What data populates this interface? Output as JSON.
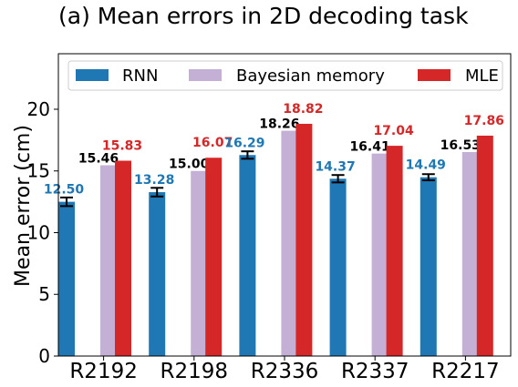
{
  "chart_data": {
    "type": "bar",
    "title": "(a)   Mean errors in 2D decoding task",
    "xlabel": "",
    "ylabel": "Mean error (cm)",
    "ylim": [
      0,
      24.5
    ],
    "yticks": [
      "0",
      "5",
      "10",
      "15",
      "20"
    ],
    "categories": [
      "R2192",
      "R2198",
      "R2336",
      "R2337",
      "R2217"
    ],
    "series": [
      {
        "name": "RNN",
        "color": "#1f77b4",
        "label_color": "#1f77b4",
        "values": [
          12.5,
          13.28,
          16.29,
          14.37,
          14.49
        ],
        "labels": [
          "12.50",
          "13.28",
          "16.29",
          "14.37",
          "14.49"
        ],
        "errors": [
          0.35,
          0.35,
          0.3,
          0.3,
          0.25
        ]
      },
      {
        "name": "Bayesian memory",
        "color": "#c5b0d5",
        "label_color": "#000000",
        "values": [
          15.46,
          15.0,
          18.26,
          16.41,
          16.53
        ],
        "labels": [
          "15.46",
          "15.00",
          "18.26",
          "16.41",
          "16.53"
        ]
      },
      {
        "name": "MLE",
        "color": "#d62728",
        "label_color": "#d62728",
        "values": [
          15.83,
          16.07,
          18.82,
          17.04,
          17.86
        ],
        "labels": [
          "15.83",
          "16.07",
          "18.82",
          "17.04",
          "17.86"
        ]
      }
    ],
    "legend": "top",
    "grid": false
  }
}
